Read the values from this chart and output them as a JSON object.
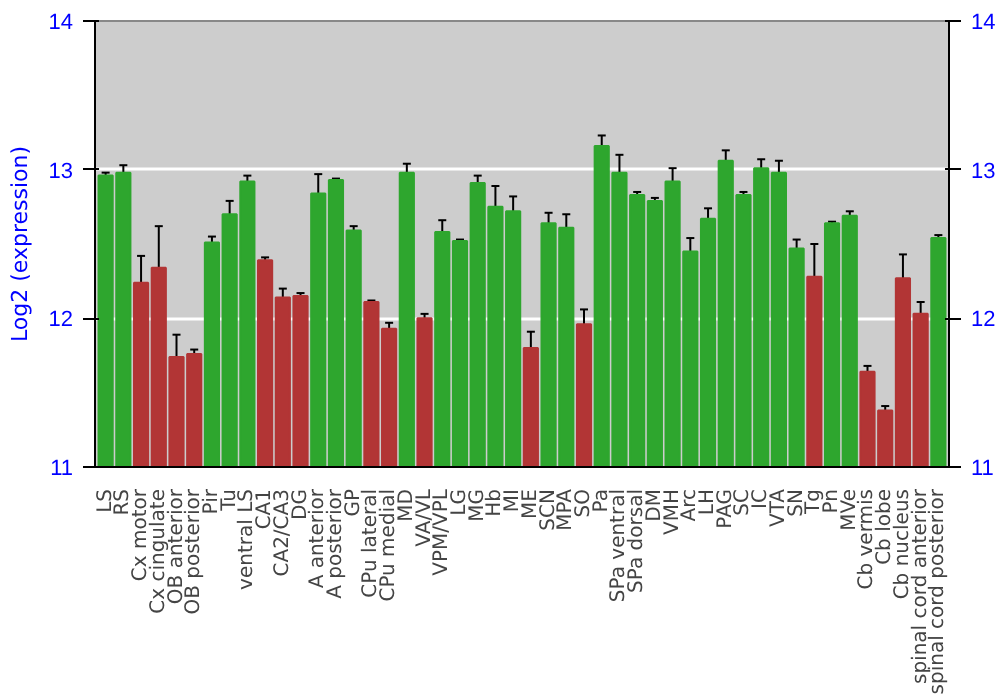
{
  "chart_data": {
    "type": "bar",
    "ylabel": "Log2 (expression)",
    "categories": [
      "LS",
      "RS",
      "Cx motor",
      "Cx cingulate",
      "OB anterior",
      "OB posterior",
      "Pir",
      "Tu",
      "ventral LS",
      "CA1",
      "CA2/CA3",
      "DG",
      "A anterior",
      "A posterior",
      "GP",
      "CPu lateral",
      "CPu medial",
      "MD",
      "VA/VL",
      "VPM/VPL",
      "LG",
      "MG",
      "Hb",
      "MI",
      "ME",
      "SCN",
      "MPA",
      "SO",
      "Pa",
      "SPa ventral",
      "SPa dorsal",
      "DM",
      "VMH",
      "Arc",
      "LH",
      "PAG",
      "SC",
      "IC",
      "VTA",
      "SN",
      "Tg",
      "Pn",
      "MVe",
      "Cb vermis",
      "Cb lobe",
      "Cb nucleus",
      "spinal cord anterior",
      "spinal cord posterior"
    ],
    "values": [
      12.96,
      12.98,
      12.24,
      12.34,
      11.74,
      11.76,
      12.51,
      12.7,
      12.92,
      12.39,
      12.14,
      12.15,
      12.84,
      12.93,
      12.59,
      12.11,
      11.93,
      12.98,
      12.0,
      12.58,
      12.52,
      12.91,
      12.75,
      12.72,
      11.8,
      12.64,
      12.61,
      11.96,
      13.16,
      12.98,
      12.83,
      12.79,
      12.92,
      12.45,
      12.67,
      13.06,
      12.83,
      13.01,
      12.98,
      12.47,
      12.28,
      12.64,
      12.69,
      11.64,
      11.38,
      12.27,
      12.03,
      12.54
    ],
    "errors": [
      0.02,
      0.05,
      0.18,
      0.28,
      0.15,
      0.03,
      0.04,
      0.09,
      0.04,
      0.02,
      0.06,
      0.02,
      0.13,
      0.01,
      0.03,
      0.01,
      0.04,
      0.06,
      0.03,
      0.08,
      0.01,
      0.05,
      0.14,
      0.1,
      0.11,
      0.07,
      0.09,
      0.1,
      0.07,
      0.12,
      0.02,
      0.02,
      0.09,
      0.09,
      0.07,
      0.07,
      0.02,
      0.06,
      0.08,
      0.06,
      0.22,
      0.01,
      0.03,
      0.04,
      0.03,
      0.16,
      0.08,
      0.02
    ],
    "colors": [
      "#2ea62e",
      "#2ea62e",
      "#b23535",
      "#b23535",
      "#b23535",
      "#b23535",
      "#2ea62e",
      "#2ea62e",
      "#2ea62e",
      "#b23535",
      "#b23535",
      "#b23535",
      "#2ea62e",
      "#2ea62e",
      "#2ea62e",
      "#b23535",
      "#b23535",
      "#2ea62e",
      "#b23535",
      "#2ea62e",
      "#2ea62e",
      "#2ea62e",
      "#2ea62e",
      "#2ea62e",
      "#b23535",
      "#2ea62e",
      "#2ea62e",
      "#b23535",
      "#2ea62e",
      "#2ea62e",
      "#2ea62e",
      "#2ea62e",
      "#2ea62e",
      "#2ea62e",
      "#2ea62e",
      "#2ea62e",
      "#2ea62e",
      "#2ea62e",
      "#2ea62e",
      "#2ea62e",
      "#b23535",
      "#2ea62e",
      "#2ea62e",
      "#b23535",
      "#b23535",
      "#b23535",
      "#b23535",
      "#2ea62e"
    ],
    "ylim": [
      11,
      14
    ],
    "yticks": [
      11,
      12,
      13,
      14
    ],
    "y2lim": [
      11,
      14
    ],
    "y2ticks": [
      11,
      12,
      13,
      14
    ],
    "grid": "y"
  }
}
